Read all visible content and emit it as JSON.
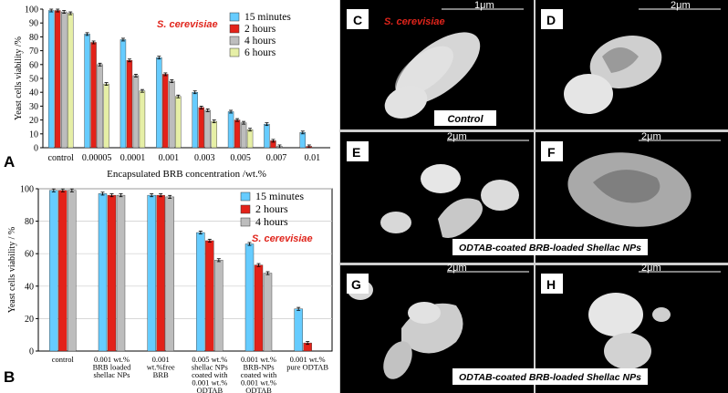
{
  "figure": {
    "panel_letters": [
      "A",
      "B",
      "C",
      "D",
      "E",
      "F",
      "G",
      "H"
    ],
    "sem": {
      "species_label": "S. cerevisiae",
      "control_caption": "Control",
      "odtab_caption_top": "ODTAB-coated BRB-loaded Shellac NPs",
      "odtab_caption_bottom": "ODTAB-coated BRB-loaded Shellac NPs",
      "scale_bars": {
        "C": "1μm",
        "D": "2μm",
        "E": "2μm",
        "F": "2μm",
        "G": "2μm",
        "H": "2μm"
      }
    }
  },
  "chart_data": [
    {
      "type": "bar",
      "panel": "A",
      "annotation": "S. cerevisiae",
      "ylabel": "Yeast cells viability /%",
      "xlabel": "Encapsulated BRB concentration /wt.%",
      "ylim": [
        0,
        100
      ],
      "yticks": [
        0,
        10,
        20,
        30,
        40,
        50,
        60,
        70,
        80,
        90,
        100
      ],
      "categories": [
        "control",
        "0.00005",
        "0.0001",
        "0.001",
        "0.003",
        "0.005",
        "0.007",
        "0.01"
      ],
      "legend_position": "top-right",
      "series": [
        {
          "name": "15 minutes",
          "color": "#66CCFF",
          "values": [
            99,
            82,
            78,
            65,
            40,
            26,
            17,
            11
          ]
        },
        {
          "name": "2 hours",
          "color": "#E32219",
          "values": [
            99,
            76,
            63,
            53,
            29,
            20,
            5,
            1
          ]
        },
        {
          "name": "4 hours",
          "color": "#BDBDBD",
          "values": [
            98,
            60,
            52,
            48,
            27,
            18,
            1,
            0
          ]
        },
        {
          "name": "6 hours",
          "color": "#E6EFA6",
          "values": [
            97,
            46,
            41,
            37,
            19,
            13,
            0,
            0
          ]
        }
      ]
    },
    {
      "type": "bar",
      "panel": "B",
      "annotation": "S. cerevisiae",
      "ylabel": "Yeast cells viability / %",
      "ylim": [
        0,
        100
      ],
      "yticks": [
        0,
        20,
        40,
        60,
        80,
        100
      ],
      "categories": [
        [
          "control"
        ],
        [
          "0.001 wt.%",
          "BRB loaded",
          "shellac NPs"
        ],
        [
          "0.001",
          "wt.%free",
          "BRB"
        ],
        [
          "0.005 wt.%",
          "shellac NPs",
          "coated with",
          "0.001 wt.%",
          "ODTAB"
        ],
        [
          "0.001 wt.%",
          "BRB-NPs",
          "coated with",
          "0.001 wt.%",
          "ODTAB"
        ],
        [
          "0.001 wt.%",
          "pure ODTAB"
        ]
      ],
      "legend_position": "top-right",
      "series": [
        {
          "name": "15 minutes",
          "color": "#66CCFF",
          "values": [
            99,
            97,
            96,
            73,
            66,
            26
          ]
        },
        {
          "name": "2 hours",
          "color": "#E32219",
          "values": [
            99,
            96,
            96,
            68,
            53,
            5
          ]
        },
        {
          "name": "4 hours",
          "color": "#BDBDBD",
          "values": [
            99,
            96,
            95,
            56,
            48,
            0
          ]
        }
      ]
    }
  ]
}
